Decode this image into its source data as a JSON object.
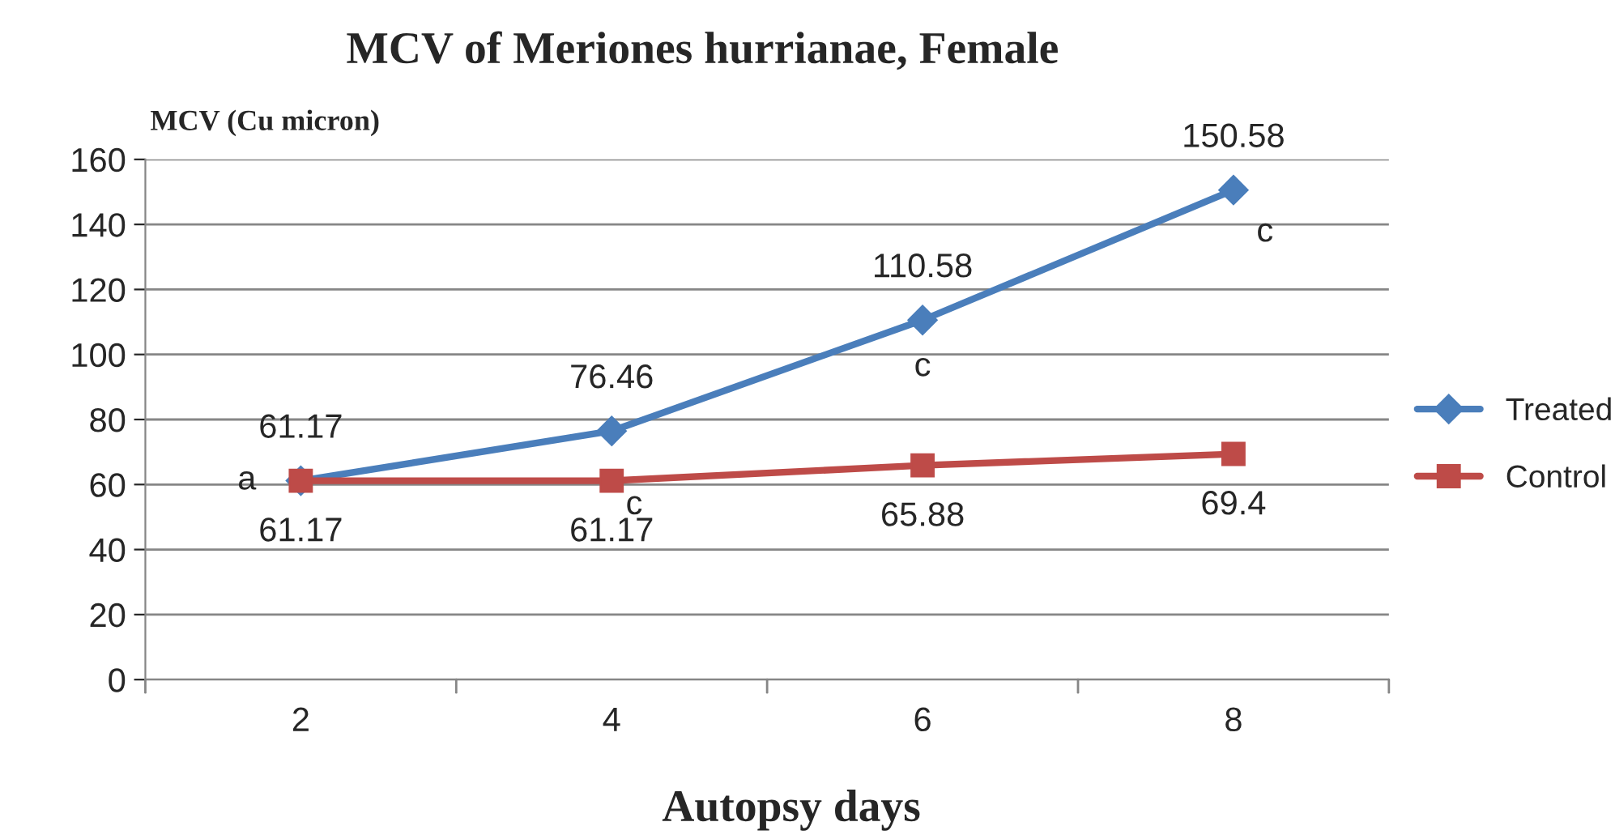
{
  "chart_data": {
    "type": "line",
    "title": "MCV of Meriones hurrianae, Female",
    "ylabel": "MCV (Cu micron)",
    "xlabel": "Autopsy days",
    "categories": [
      "2",
      "4",
      "6",
      "8"
    ],
    "series": [
      {
        "name": "Treated",
        "color": "#4a7ebb",
        "values": [
          61.17,
          76.46,
          110.58,
          150.58
        ],
        "marker": "diamond"
      },
      {
        "name": "Control",
        "color": "#be4b48",
        "values": [
          61.17,
          61.17,
          65.88,
          69.4
        ],
        "marker": "square"
      }
    ],
    "ylim": [
      0,
      160
    ],
    "yticks": [
      0,
      20,
      40,
      60,
      80,
      100,
      120,
      140,
      160
    ],
    "grid": "y",
    "legend": "right",
    "data_labels": true,
    "annotations": [
      {
        "text": "a",
        "x": "2",
        "y": 61.17
      },
      {
        "text": "c",
        "x": "4",
        "y": 61.17
      },
      {
        "text": "c",
        "x": "6",
        "y": 110.58
      },
      {
        "text": "c",
        "x": "8",
        "y": 150.58
      }
    ]
  }
}
